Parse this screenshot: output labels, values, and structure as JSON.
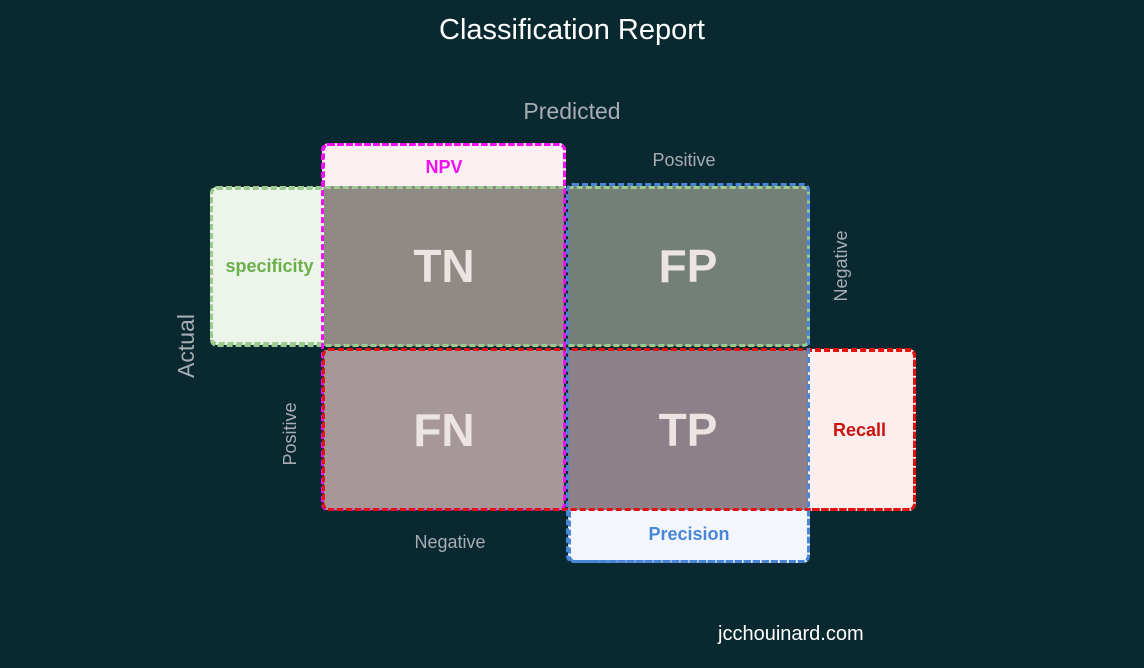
{
  "title": "Classification Report",
  "axes": {
    "predicted": "Predicted",
    "actual": "Actual",
    "predicted_positive": "Positive",
    "predicted_negative": "Negative",
    "actual_negative": "Negative",
    "actual_positive": "Positive"
  },
  "cells": {
    "tn": "TN",
    "fp": "FP",
    "fn": "FN",
    "tp": "TP"
  },
  "metrics": {
    "npv": "NPV",
    "specificity": "specificity",
    "recall": "Recall",
    "precision": "Precision"
  },
  "colors": {
    "background": "#0a2830",
    "npv": "#f20ff2",
    "specificity": "#6ab04c",
    "recall": "#cc1111",
    "precision": "#4a86d8"
  },
  "footer": "jcchouinard.com"
}
